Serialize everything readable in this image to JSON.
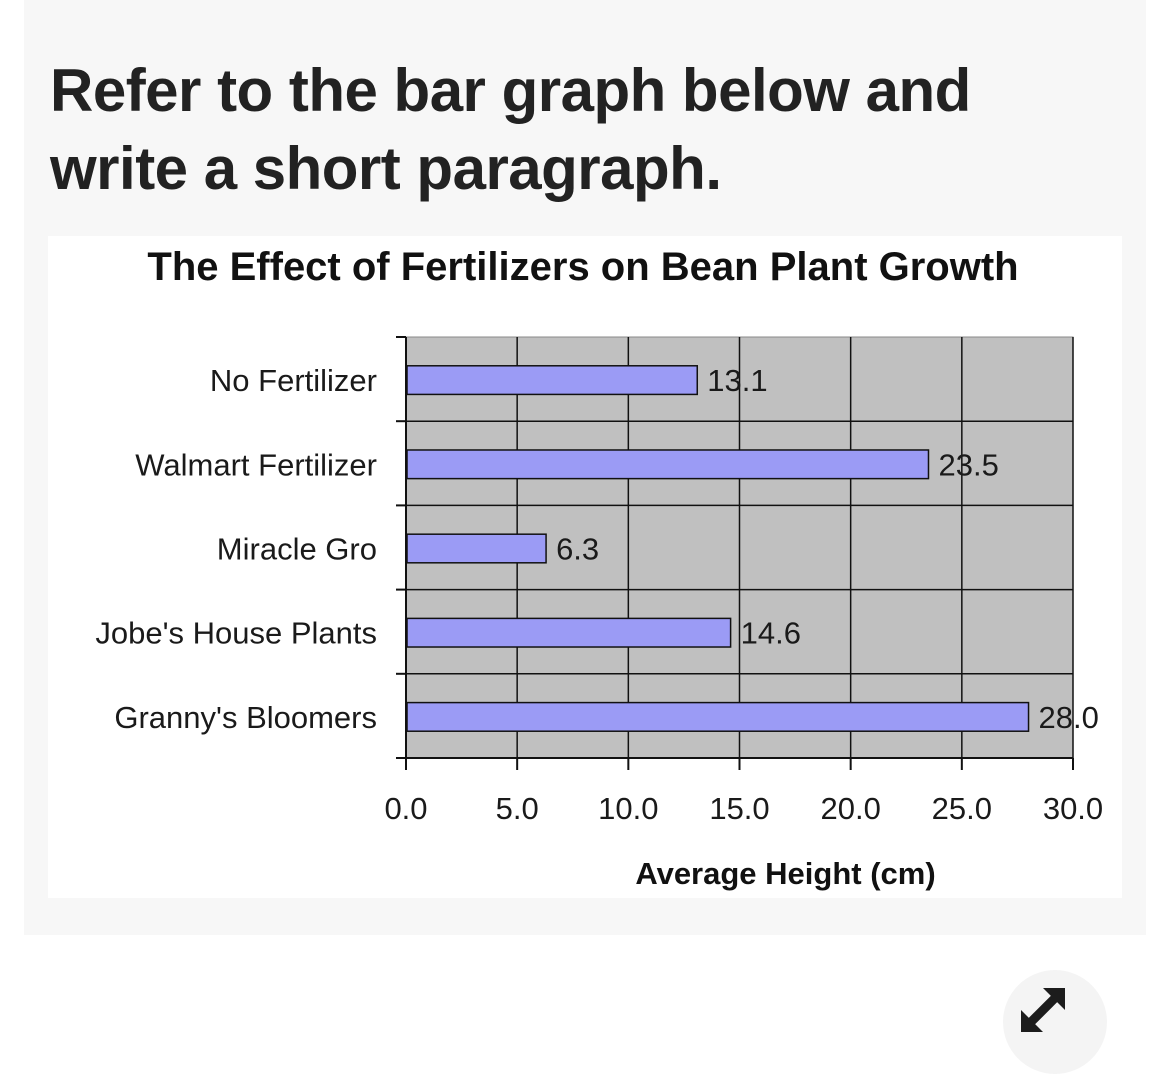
{
  "question": {
    "text": "Refer to the bar graph below and write a short paragraph."
  },
  "expand_icon": "expand-diagonal-arrows-icon",
  "colors": {
    "bar_fill": "#9b9bf5",
    "plot_background": "#c0c0c0",
    "grid": "#111111"
  },
  "chart_data": {
    "type": "bar",
    "orientation": "horizontal",
    "title": "The Effect of Fertilizers on Bean Plant Growth",
    "xlabel": "Average Height (cm)",
    "ylabel": "",
    "categories": [
      "No Fertilizer",
      "Walmart Fertilizer",
      "Miracle Gro",
      "Jobe's House Plants",
      "Granny's Bloomers"
    ],
    "values": [
      13.1,
      23.5,
      6.3,
      14.6,
      28.0
    ],
    "value_labels": [
      "13.1",
      "23.5",
      "6.3",
      "14.6",
      "28.0"
    ],
    "xlim": [
      0,
      30
    ],
    "xticks": [
      "0.0",
      "5.0",
      "10.0",
      "15.0",
      "20.0",
      "25.0",
      "30.0"
    ],
    "grid": true,
    "legend": "none"
  }
}
